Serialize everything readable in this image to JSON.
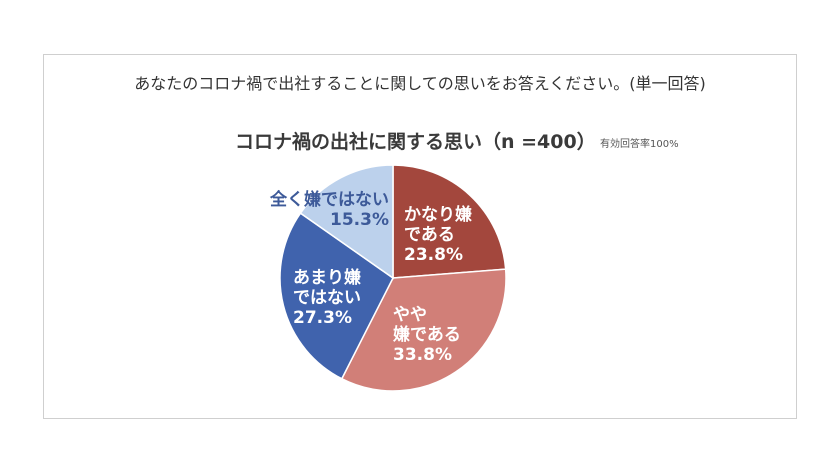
{
  "question": "あなたのコロナ禍で出社することに関しての思いをお答えください。(単一回答)",
  "chart_data": {
    "type": "pie",
    "title": "コロナ禍の出社に関する思い（n =400）",
    "note": "有効回答率100%",
    "slices": [
      {
        "label_lines": [
          "かなり嫌",
          "である"
        ],
        "value": 23.8,
        "value_text": "23.8%",
        "color": "#a3473d",
        "text_color": "#ffffff"
      },
      {
        "label_lines": [
          "やや",
          "嫌である"
        ],
        "value": 33.8,
        "value_text": "33.8%",
        "color": "#d17f78",
        "text_color": "#ffffff"
      },
      {
        "label_lines": [
          "あまり嫌",
          "ではない"
        ],
        "value": 27.3,
        "value_text": "27.3%",
        "color": "#4063ad",
        "text_color": "#ffffff"
      },
      {
        "label_lines": [
          "全く嫌ではない"
        ],
        "value": 15.3,
        "value_text": "15.3%",
        "color": "#bcd1ec",
        "text_color": "#3d5a99"
      }
    ]
  }
}
